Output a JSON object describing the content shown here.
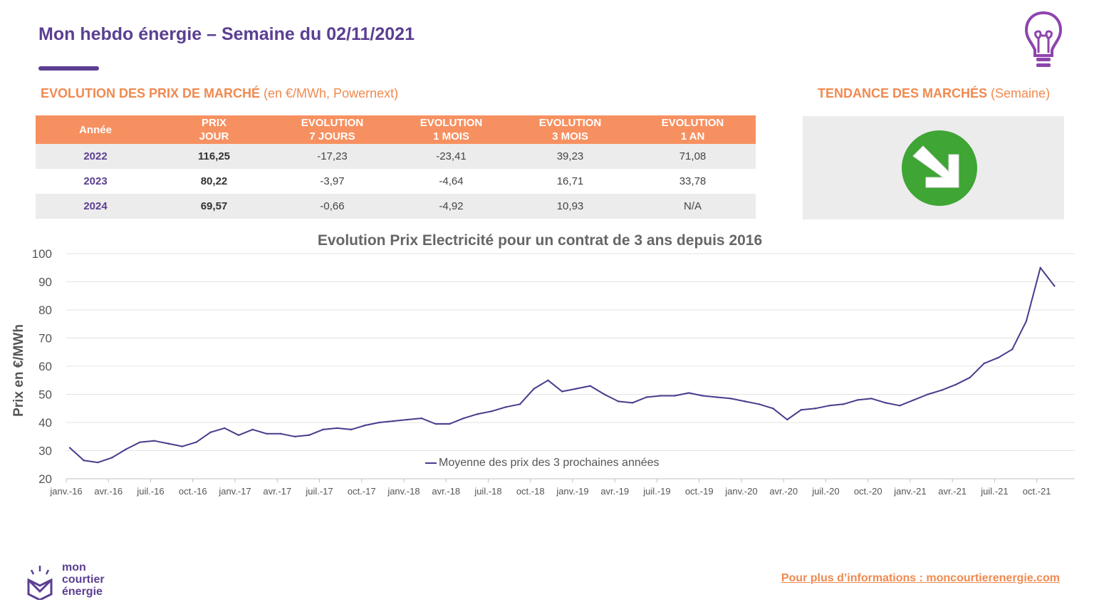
{
  "header": {
    "title": "Mon hebdo énergie – Semaine du 02/11/2021"
  },
  "market": {
    "title_bold": "EVOLUTION DES PRIX DE MARCHÉ",
    "title_rest": " (en €/MWh, Powernext)",
    "columns": [
      {
        "l1": "Année",
        "l2": ""
      },
      {
        "l1": "PRIX",
        "l2": "JOUR"
      },
      {
        "l1": "EVOLUTION",
        "l2": "7 JOURS"
      },
      {
        "l1": "EVOLUTION",
        "l2": "1 MOIS"
      },
      {
        "l1": "EVOLUTION",
        "l2": "3 MOIS"
      },
      {
        "l1": "EVOLUTION",
        "l2": "1 AN"
      }
    ],
    "rows": [
      [
        "2022",
        "116,25",
        "-17,23",
        "-23,41",
        "39,23",
        "71,08"
      ],
      [
        "2023",
        "80,22",
        "-3,97",
        "-4,64",
        "16,71",
        "33,78"
      ],
      [
        "2024",
        "69,57",
        "-0,66",
        "-4,92",
        "10,93",
        "N/A"
      ]
    ]
  },
  "trend": {
    "title_bold": "TENDANCE DES MARCHÉS",
    "title_rest": " (Semaine)",
    "icon": "arrow-down-right-icon",
    "color": "#3fa535"
  },
  "chart_data": {
    "type": "line",
    "title": "Evolution Prix Electricité pour un contrat de 3 ans depuis 2016",
    "ylabel": "Prix en €/MWh",
    "xlabel": "",
    "ylim": [
      20,
      100
    ],
    "yticks": [
      20,
      30,
      40,
      50,
      60,
      70,
      80,
      90,
      100
    ],
    "xtick_labels": [
      "janv.-16",
      "avr.-16",
      "juil.-16",
      "oct.-16",
      "janv.-17",
      "avr.-17",
      "juil.-17",
      "oct.-17",
      "janv.-18",
      "avr.-18",
      "juil.-18",
      "oct.-18",
      "janv.-19",
      "avr.-19",
      "juil.-19",
      "oct.-19",
      "janv.-20",
      "avr.-20",
      "juil.-20",
      "oct.-20",
      "janv.-21",
      "avr.-21",
      "juil.-21",
      "oct.-21"
    ],
    "grid": "horizontal",
    "legend_position": "bottom-center",
    "series": [
      {
        "name": "Moyenne des prix des 3 prochaines années",
        "color": "#4a3a8c",
        "points": [
          [
            "janv.-16",
            31
          ],
          [
            "févr.-16",
            26.5
          ],
          [
            "mars-16",
            25.8
          ],
          [
            "avr.-16",
            27.5
          ],
          [
            "mai-16",
            30.5
          ],
          [
            "juin-16",
            33
          ],
          [
            "juil.-16",
            33.5
          ],
          [
            "août-16",
            32.5
          ],
          [
            "sept.-16",
            31.5
          ],
          [
            "oct.-16",
            33
          ],
          [
            "nov.-16",
            36.5
          ],
          [
            "déc.-16",
            38
          ],
          [
            "janv.-17",
            35.5
          ],
          [
            "févr.-17",
            37.5
          ],
          [
            "mars-17",
            36
          ],
          [
            "avr.-17",
            36
          ],
          [
            "mai-17",
            35
          ],
          [
            "juin-17",
            35.5
          ],
          [
            "juil.-17",
            37.5
          ],
          [
            "août-17",
            38
          ],
          [
            "sept.-17",
            37.5
          ],
          [
            "oct.-17",
            39
          ],
          [
            "nov.-17",
            40
          ],
          [
            "déc.-17",
            40.5
          ],
          [
            "janv.-18",
            41
          ],
          [
            "févr.-18",
            41.5
          ],
          [
            "mars-18",
            39.5
          ],
          [
            "avr.-18",
            39.5
          ],
          [
            "mai-18",
            41.5
          ],
          [
            "juin-18",
            43
          ],
          [
            "juil.-18",
            44
          ],
          [
            "août-18",
            45.5
          ],
          [
            "sept.-18",
            46.5
          ],
          [
            "oct.-18",
            52
          ],
          [
            "nov.-18",
            55
          ],
          [
            "déc.-18",
            51
          ],
          [
            "janv.-19",
            52
          ],
          [
            "févr.-19",
            53
          ],
          [
            "mars-19",
            50
          ],
          [
            "avr.-19",
            47.5
          ],
          [
            "mai-19",
            47
          ],
          [
            "juin-19",
            49
          ],
          [
            "juil.-19",
            49.5
          ],
          [
            "août-19",
            49.5
          ],
          [
            "sept.-19",
            50.5
          ],
          [
            "oct.-19",
            49.5
          ],
          [
            "nov.-19",
            49
          ],
          [
            "déc.-19",
            48.5
          ],
          [
            "janv.-20",
            47.5
          ],
          [
            "févr.-20",
            46.5
          ],
          [
            "mars-20",
            45
          ],
          [
            "avr.-20",
            41
          ],
          [
            "mai-20",
            44.5
          ],
          [
            "juin-20",
            45
          ],
          [
            "juil.-20",
            46
          ],
          [
            "août-20",
            46.5
          ],
          [
            "sept.-20",
            48
          ],
          [
            "oct.-20",
            48.5
          ],
          [
            "nov.-20",
            47
          ],
          [
            "déc.-20",
            46
          ],
          [
            "janv.-21",
            48
          ],
          [
            "févr.-21",
            50
          ],
          [
            "mars-21",
            51.5
          ],
          [
            "avr.-21",
            53.5
          ],
          [
            "mai-21",
            56
          ],
          [
            "juin-21",
            61
          ],
          [
            "juil.-21",
            63
          ],
          [
            "août-21",
            66
          ],
          [
            "sept.-21",
            76
          ],
          [
            "oct.-21",
            95
          ],
          [
            "nov.-21",
            88.5
          ]
        ]
      }
    ]
  },
  "footer": {
    "logo_lines": [
      "mon",
      "courtier",
      "énergie"
    ],
    "link_text": "Pour plus d’informations : moncourtierenergie.com"
  }
}
